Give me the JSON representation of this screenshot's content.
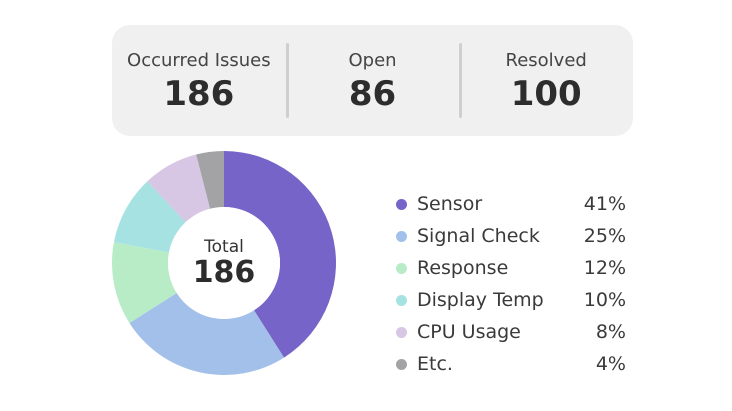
{
  "stats": [
    {
      "label": "Occurred Issues",
      "value": "186"
    },
    {
      "label": "Open",
      "value": "86"
    },
    {
      "label": "Resolved",
      "value": "100"
    }
  ],
  "donut": {
    "center_title": "Total",
    "center_value": "186"
  },
  "legend": [
    {
      "name": "Sensor",
      "percent": "41%",
      "value": 41,
      "color": "#7664c8"
    },
    {
      "name": "Signal Check",
      "percent": "25%",
      "value": 25,
      "color": "#a3c0ea"
    },
    {
      "name": "Response",
      "percent": "12%",
      "value": 12,
      "color": "#b8ecc6"
    },
    {
      "name": "Display Temp",
      "percent": "10%",
      "value": 10,
      "color": "#a6e2e2"
    },
    {
      "name": "CPU Usage",
      "percent": "8%",
      "value": 8,
      "color": "#d7c6e4"
    },
    {
      "name": "Etc.",
      "percent": "4%",
      "value": 4,
      "color": "#a3a3a5"
    }
  ],
  "chart_data": {
    "type": "pie",
    "categories": [
      "Sensor",
      "Signal Check",
      "Response",
      "Display Temp",
      "CPU Usage",
      "Etc."
    ],
    "values": [
      41,
      25,
      12,
      10,
      8,
      4
    ]
  }
}
